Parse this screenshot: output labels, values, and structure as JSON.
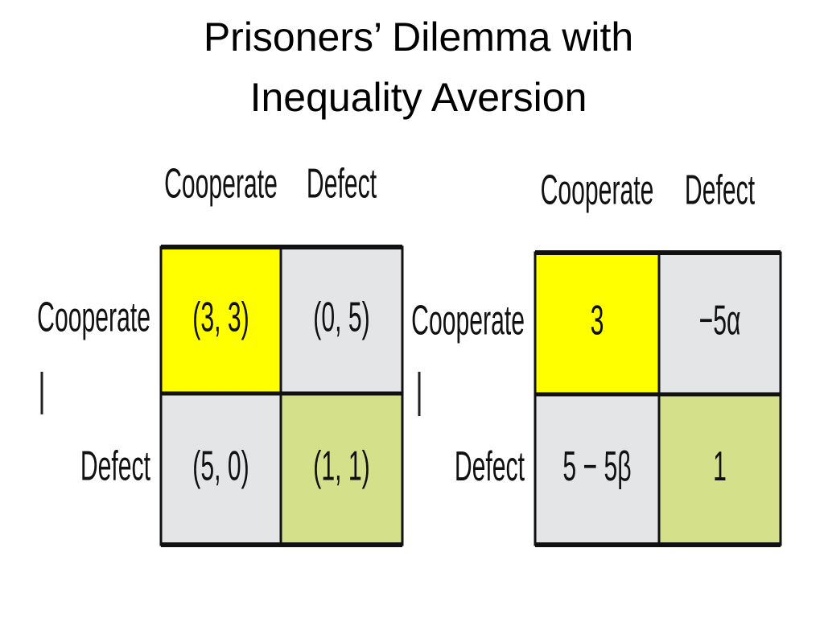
{
  "title": {
    "lines": [
      "Prisoners’ Dilemma with",
      "Inequality Aversion"
    ]
  },
  "matrices": [
    {
      "columns": [
        "Cooperate",
        "Defect"
      ],
      "rows": [
        {
          "label": "Cooperate",
          "cells": [
            "(3, 3)",
            "(0, 5)"
          ]
        },
        {
          "label": "Defect",
          "cells": [
            "(5, 0)",
            "(1, 1)"
          ]
        }
      ]
    },
    {
      "columns": [
        "Cooperate",
        "Defect"
      ],
      "rows": [
        {
          "label": "Cooperate",
          "cells": [
            "3",
            "−5α"
          ]
        },
        {
          "label": "Defect",
          "cells": [
            "5 − 5β",
            "1"
          ]
        }
      ]
    }
  ]
}
